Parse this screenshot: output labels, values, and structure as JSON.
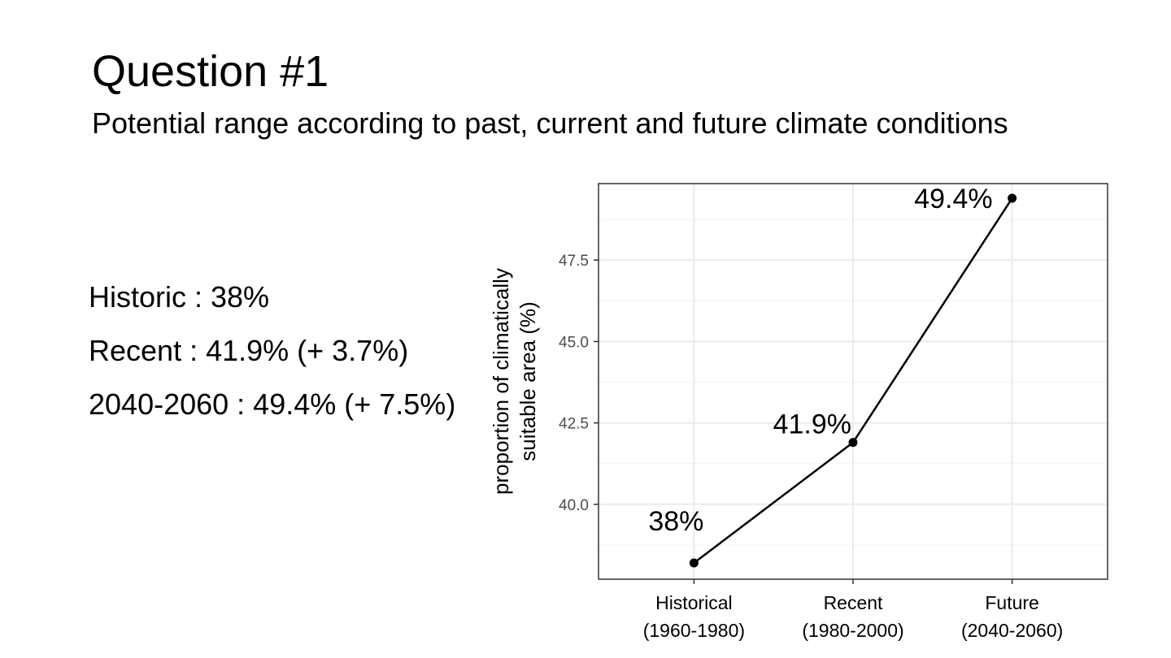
{
  "slide": {
    "title": "Question #1",
    "subtitle": "Potential range according to past, current and future climate conditions"
  },
  "summary": [
    "Historic : 38%",
    "Recent : 41.9% (+ 3.7%)",
    "2040-2060 : 49.4% (+ 7.5%)"
  ],
  "chart_data": {
    "type": "line",
    "categories": [
      [
        "Historical",
        "(1960-1980)"
      ],
      [
        "Recent",
        "(1980-2000)"
      ],
      [
        "Future",
        "(2040-2060)"
      ]
    ],
    "values": [
      38.2,
      41.9,
      49.4
    ],
    "point_labels": [
      "38%",
      "41.9%",
      "49.4%"
    ],
    "ylabel": [
      "proportion of climatically",
      "suitable area (%)"
    ],
    "xlabel": "",
    "ylim": [
      37.7,
      49.85
    ],
    "yticks": [
      40.0,
      42.5,
      45.0,
      47.5
    ],
    "ytick_labels": [
      "40.0",
      "42.5",
      "45.0",
      "47.5"
    ],
    "grid": true,
    "colors": {
      "line": "#000000",
      "grid_major": "#ebebeb",
      "grid_minor": "#f4f4f4",
      "panel_border": "#333333",
      "tick_label": "#4d4d4d"
    }
  }
}
